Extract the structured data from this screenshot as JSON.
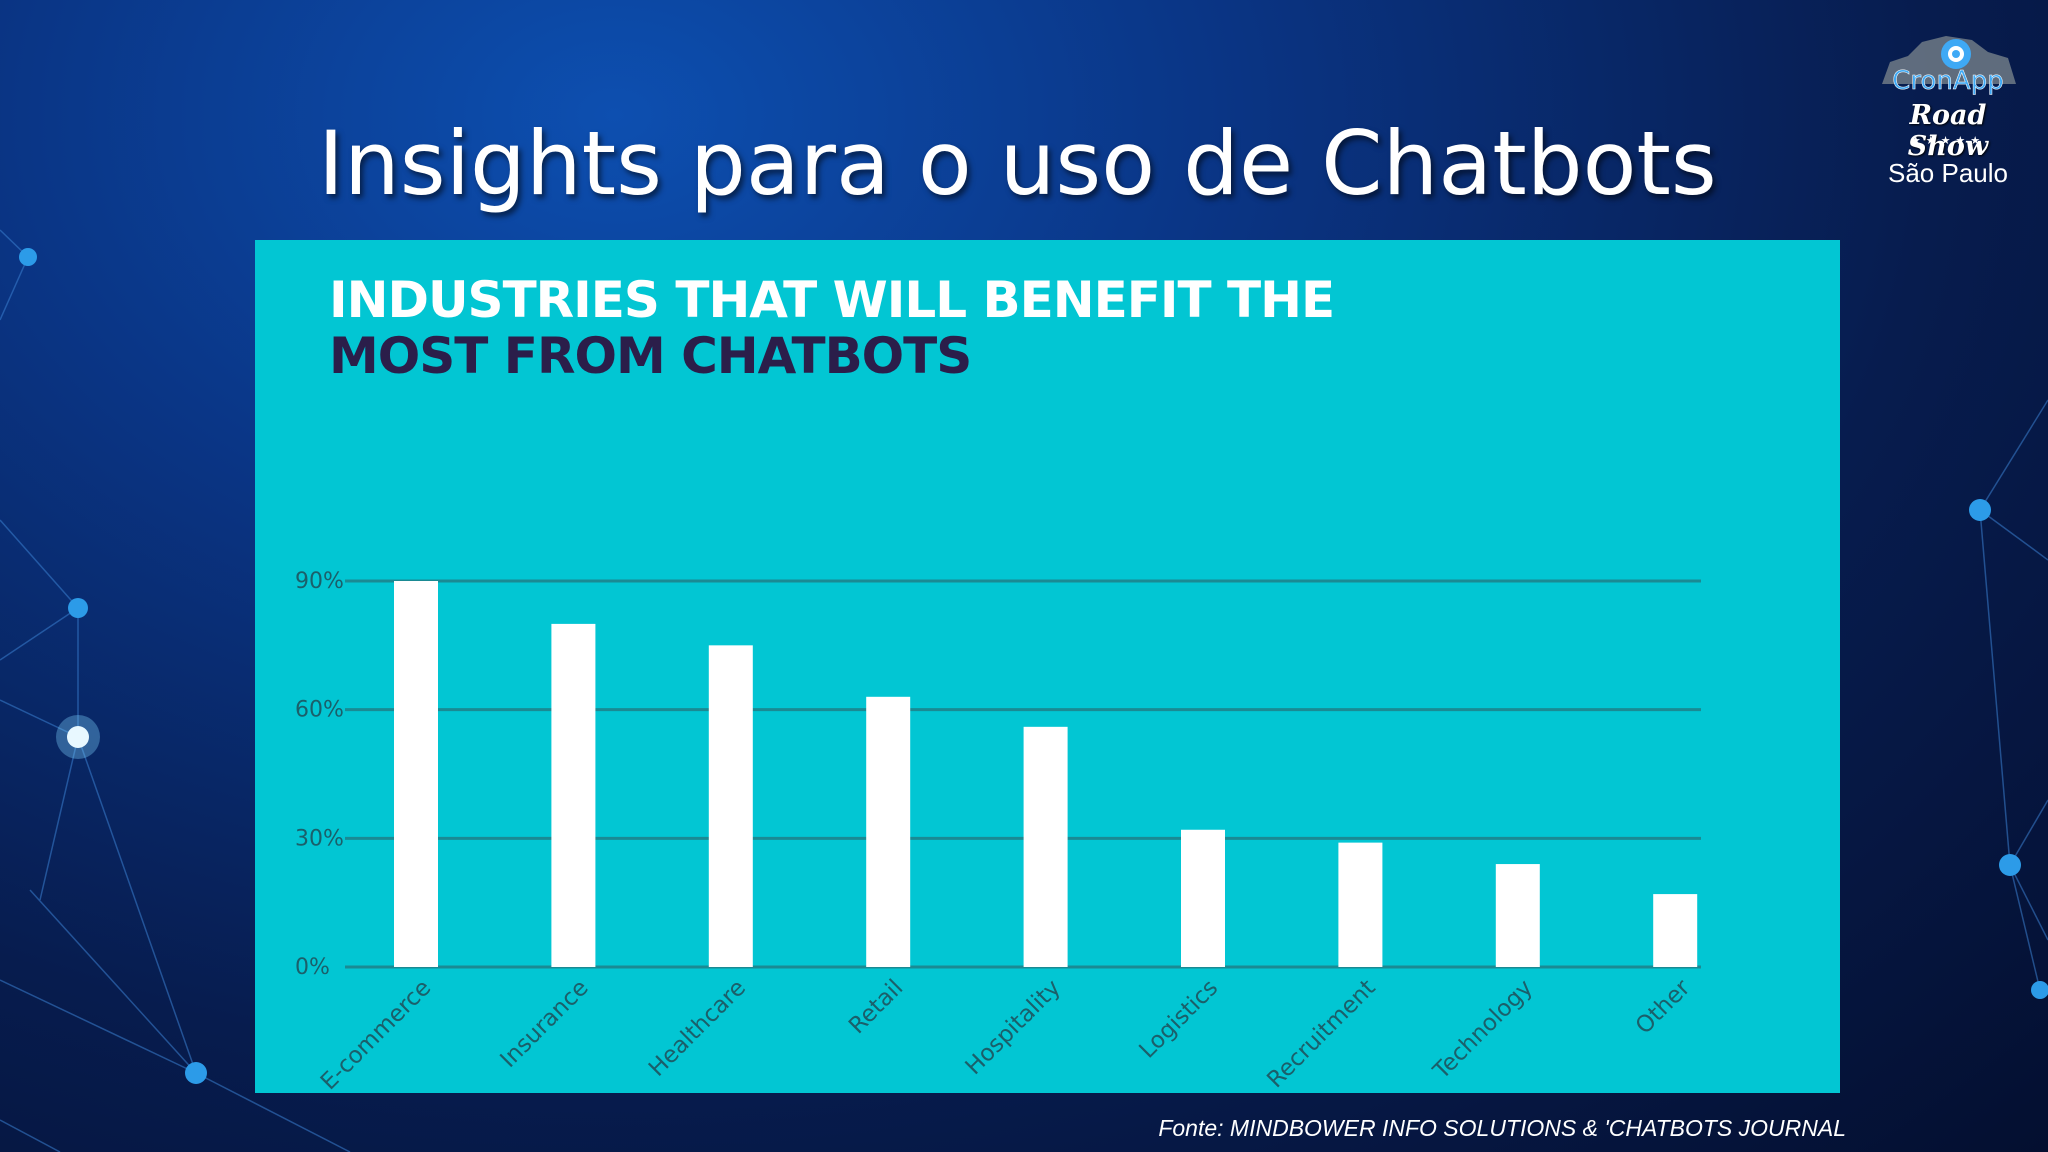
{
  "slide": {
    "title": "Insights para o uso de Chatbots",
    "source": "Fonte: MINDBOWER INFO SOLUTIONS & 'CHATBOTS JOURNAL"
  },
  "logo": {
    "brand": "CronApp",
    "event": "Road Show",
    "stars": "★★★★★",
    "city": "São Paulo"
  },
  "colors": {
    "panel": "#02c6d3",
    "bar": "#ffffff",
    "gridline": "#1a8a93",
    "title_light": "#ffffff",
    "title_dark": "#2b1e4a"
  },
  "chart_data": {
    "type": "bar",
    "title_line1": "INDUSTRIES THAT WILL BENEFIT THE",
    "title_line2": "MOST FROM CHATBOTS",
    "categories": [
      "E-commerce",
      "Insurance",
      "Healthcare",
      "Retail",
      "Hospitality",
      "Logistics",
      "Recruitment",
      "Technology",
      "Other"
    ],
    "values": [
      90,
      80,
      75,
      63,
      56,
      32,
      29,
      24,
      17
    ],
    "ylim": [
      0,
      90
    ],
    "yticks": [
      0,
      30,
      60,
      90
    ],
    "ytick_labels": [
      "0%",
      "30%",
      "60%",
      "90%"
    ],
    "grid": true,
    "legend": "none"
  }
}
